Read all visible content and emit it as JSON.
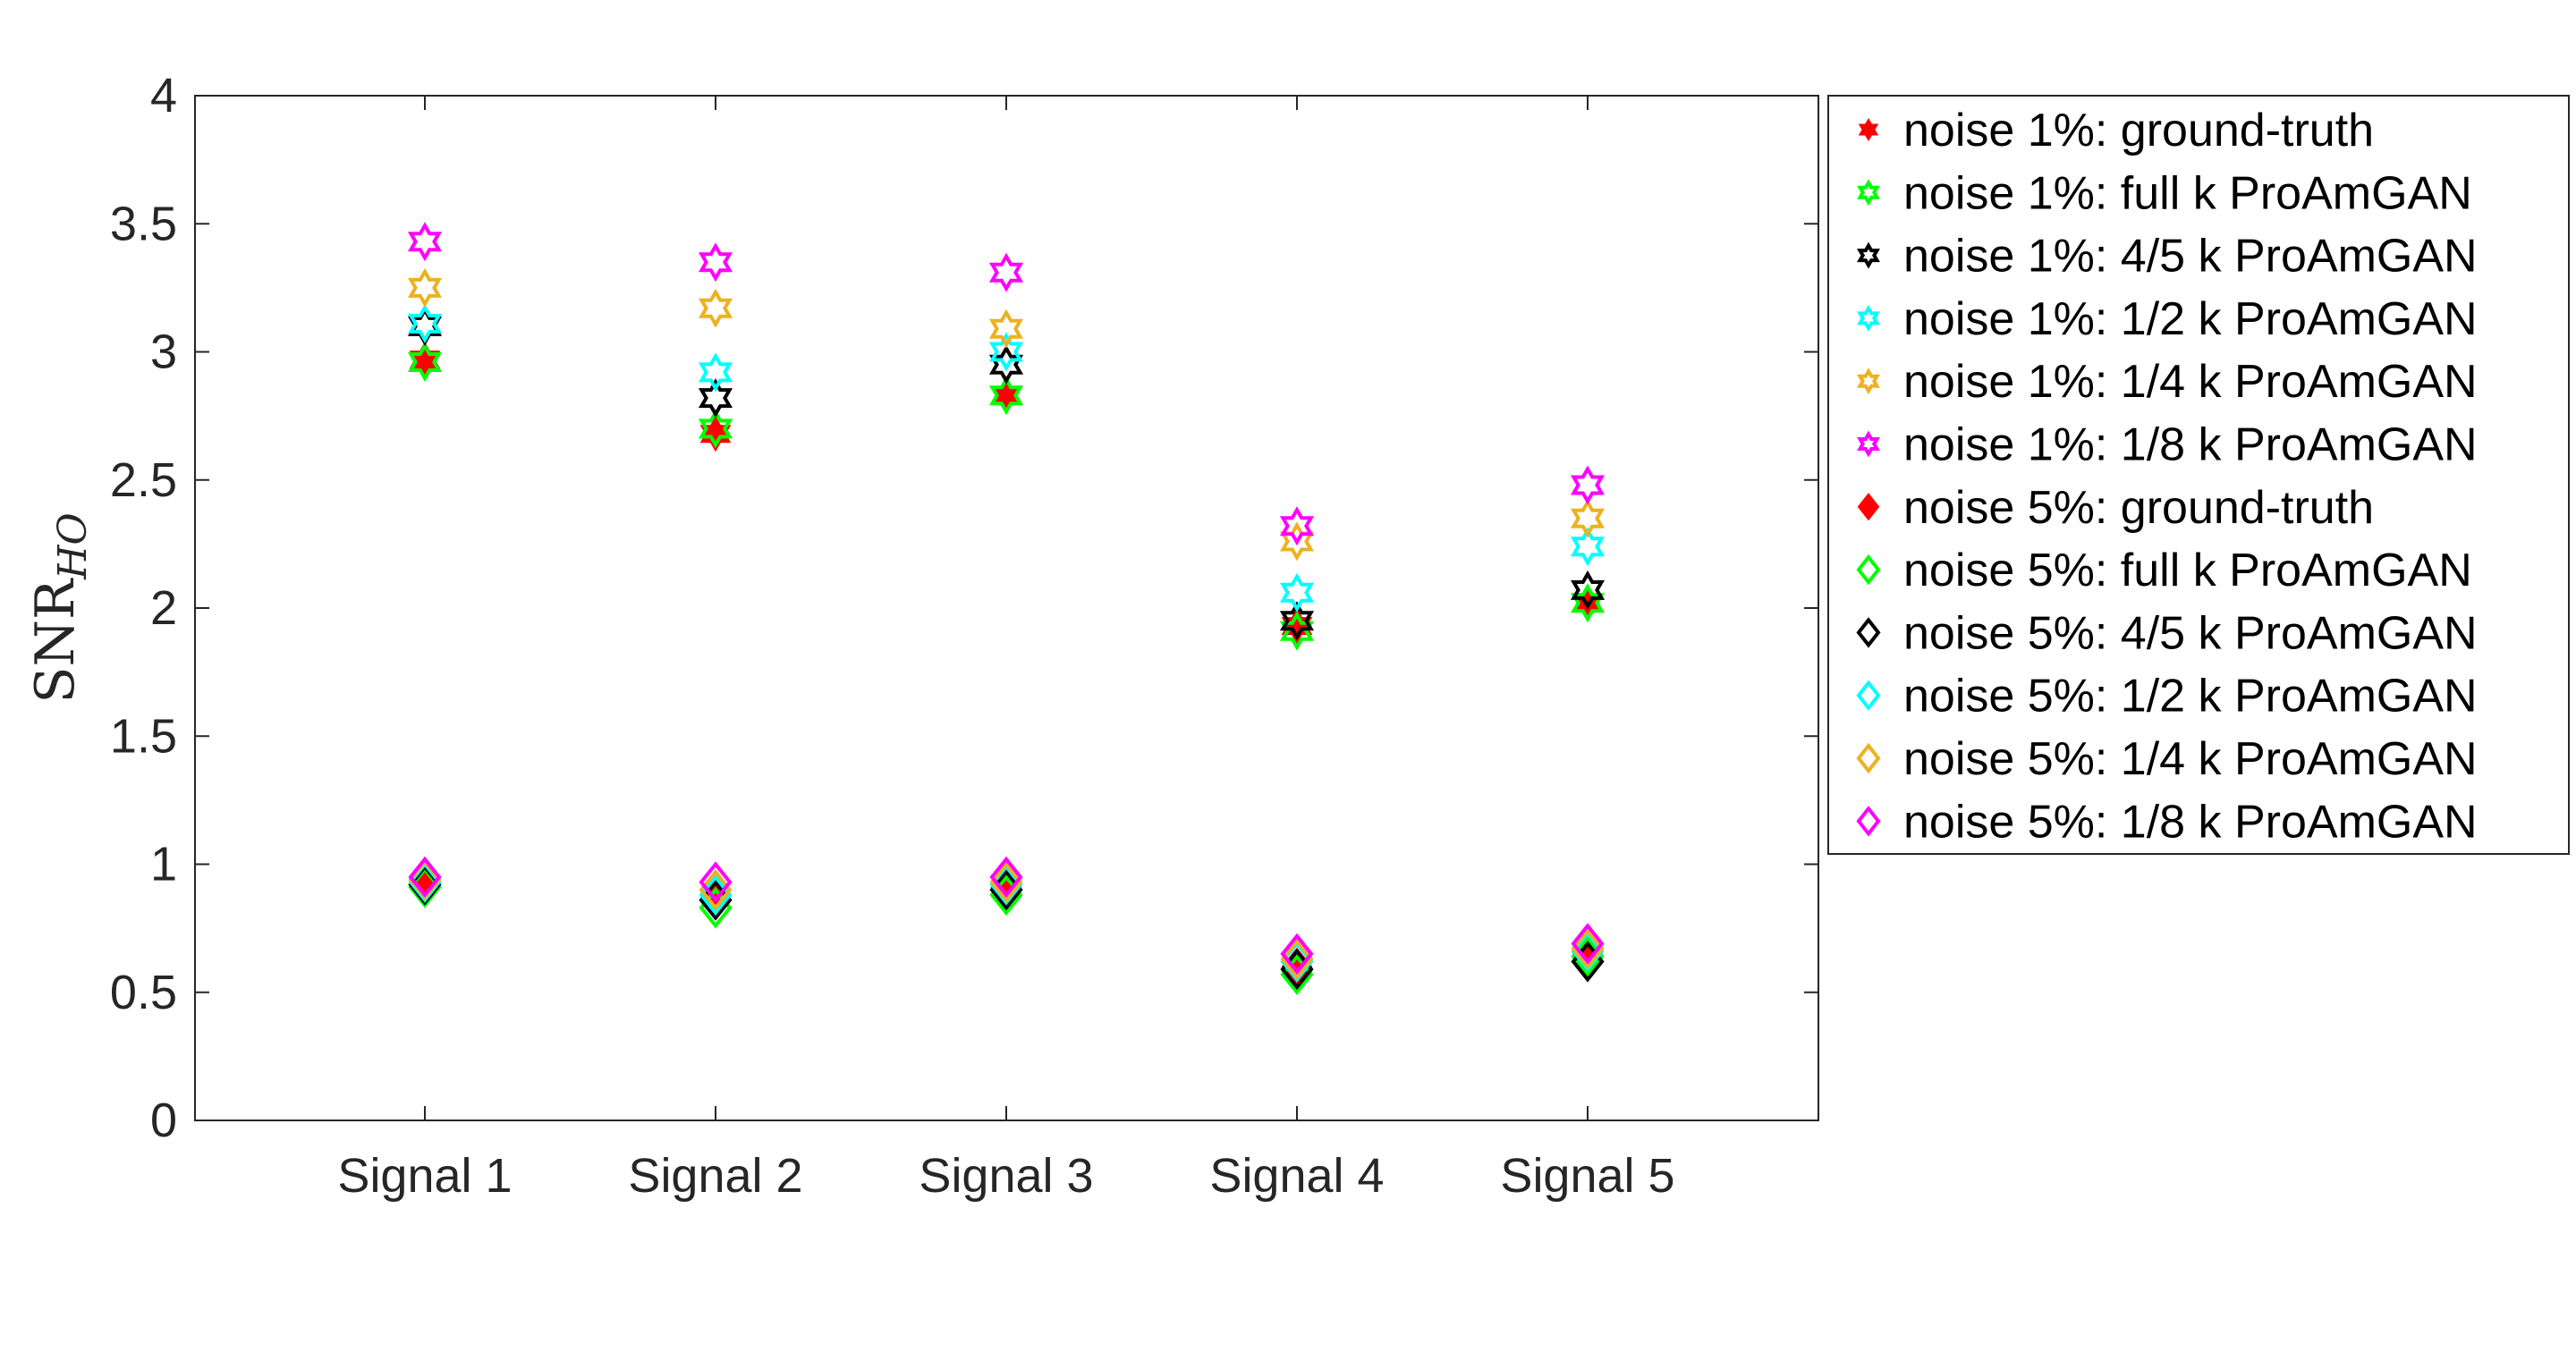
{
  "chart_data": {
    "type": "scatter",
    "ylabel": "SNR",
    "ylabel_subscript": "HO",
    "ylim": [
      0,
      4
    ],
    "yticks": [
      "0",
      "0.5",
      "1",
      "1.5",
      "2",
      "2.5",
      "3",
      "3.5",
      "4"
    ],
    "categories": [
      "Signal 1",
      "Signal 2",
      "Signal 3",
      "Signal 4",
      "Signal 5"
    ],
    "legend_position": "outside-right",
    "series": [
      {
        "name": "noise 1%: ground-truth",
        "marker": "hexagram-filled",
        "color": "#ff0000",
        "values": [
          2.97,
          2.68,
          2.83,
          1.93,
          2.02
        ]
      },
      {
        "name": "noise 1%: full k ProAmGAN",
        "marker": "hexagram",
        "color": "#00ff00",
        "values": [
          2.96,
          2.7,
          2.83,
          1.91,
          2.02
        ]
      },
      {
        "name": "noise 1%: 4/5 k ProAmGAN",
        "marker": "hexagram",
        "color": "#000000",
        "values": [
          3.1,
          2.82,
          2.95,
          1.95,
          2.07
        ]
      },
      {
        "name": "noise 1%: 1/2 k ProAmGAN",
        "marker": "hexagram",
        "color": "#00ffff",
        "values": [
          3.11,
          2.92,
          3.0,
          2.06,
          2.24
        ]
      },
      {
        "name": "noise 1%: 1/4 k ProAmGAN",
        "marker": "hexagram",
        "color": "#edb120",
        "values": [
          3.25,
          3.17,
          3.09,
          2.26,
          2.35
        ]
      },
      {
        "name": "noise 1%: 1/8 k ProAmGAN",
        "marker": "hexagram",
        "color": "#ff00ff",
        "values": [
          3.43,
          3.35,
          3.31,
          2.32,
          2.48
        ]
      },
      {
        "name": "noise 5%: ground-truth",
        "marker": "diamond-filled",
        "color": "#ff0000",
        "values": [
          0.92,
          0.86,
          0.91,
          0.6,
          0.65
        ]
      },
      {
        "name": "noise 5%: full k ProAmGAN",
        "marker": "diamond",
        "color": "#00ff00",
        "values": [
          0.91,
          0.83,
          0.88,
          0.57,
          0.64
        ]
      },
      {
        "name": "noise 5%: 4/5 k ProAmGAN",
        "marker": "diamond",
        "color": "#000000",
        "values": [
          0.92,
          0.86,
          0.9,
          0.59,
          0.62
        ]
      },
      {
        "name": "noise 5%: 1/2 k ProAmGAN",
        "marker": "diamond",
        "color": "#00ffff",
        "values": [
          0.93,
          0.88,
          0.92,
          0.62,
          0.66
        ]
      },
      {
        "name": "noise 5%: 1/4 k ProAmGAN",
        "marker": "diamond",
        "color": "#edb120",
        "values": [
          0.94,
          0.9,
          0.93,
          0.63,
          0.67
        ]
      },
      {
        "name": "noise 5%: 1/8 k ProAmGAN",
        "marker": "diamond",
        "color": "#ff00ff",
        "values": [
          0.95,
          0.93,
          0.95,
          0.65,
          0.69
        ]
      }
    ]
  }
}
